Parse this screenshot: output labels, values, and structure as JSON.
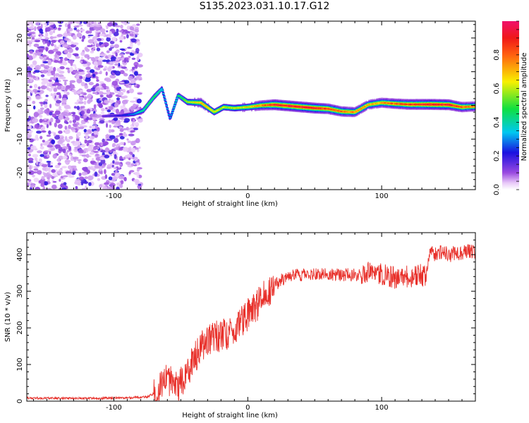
{
  "figure": {
    "title": "S135.2023.031.10.17.G12"
  },
  "chart_data": [
    {
      "type": "heatmap",
      "xlabel": "Height of straight line (km)",
      "ylabel": "Frequency (Hz)",
      "xlim": [
        -165,
        170
      ],
      "ylim": [
        -25,
        25
      ],
      "xticks": [
        -100,
        0,
        100
      ],
      "yticks": [
        -20,
        -10,
        0,
        10,
        20
      ],
      "grid": false,
      "colorbar": {
        "label": "Normalized spectral amplitude",
        "range": [
          0,
          1
        ],
        "ticks": [
          "0.0",
          "0.2",
          "0.4",
          "0.6",
          "0.8"
        ],
        "tick_values": [
          0.0,
          0.2,
          0.4,
          0.6,
          0.8
        ],
        "colormap": "rainbow (white-purple-blue-cyan-green-yellow-red-magenta)"
      },
      "noise_region_x": [
        -165,
        -80
      ],
      "ridge": [
        {
          "x": -108,
          "freq": -3.2,
          "amp": 0.15
        },
        {
          "x": -95,
          "freq": -3.0,
          "amp": 0.2
        },
        {
          "x": -85,
          "freq": -2.6,
          "amp": 0.3
        },
        {
          "x": -78,
          "freq": -1.5,
          "amp": 0.4
        },
        {
          "x": -70,
          "freq": 2.5,
          "amp": 0.45
        },
        {
          "x": -64,
          "freq": 5.0,
          "amp": 0.35
        },
        {
          "x": -58,
          "freq": -4.0,
          "amp": 0.3
        },
        {
          "x": -52,
          "freq": 3.0,
          "amp": 0.4
        },
        {
          "x": -45,
          "freq": 1.0,
          "amp": 0.55
        },
        {
          "x": -35,
          "freq": 0.8,
          "amp": 0.7
        },
        {
          "x": -25,
          "freq": -2.0,
          "amp": 0.6
        },
        {
          "x": -18,
          "freq": -0.5,
          "amp": 0.6
        },
        {
          "x": -10,
          "freq": -0.8,
          "amp": 0.6
        },
        {
          "x": 0,
          "freq": -0.5,
          "amp": 0.65
        },
        {
          "x": 10,
          "freq": 0.0,
          "amp": 0.75
        },
        {
          "x": 20,
          "freq": 0.2,
          "amp": 0.9
        },
        {
          "x": 35,
          "freq": -0.3,
          "amp": 0.9
        },
        {
          "x": 50,
          "freq": -0.8,
          "amp": 0.9
        },
        {
          "x": 60,
          "freq": -1.0,
          "amp": 0.85
        },
        {
          "x": 70,
          "freq": -1.8,
          "amp": 0.8
        },
        {
          "x": 80,
          "freq": -2.0,
          "amp": 0.75
        },
        {
          "x": 90,
          "freq": 0.2,
          "amp": 0.7
        },
        {
          "x": 100,
          "freq": 0.8,
          "amp": 0.75
        },
        {
          "x": 110,
          "freq": 0.5,
          "amp": 0.8
        },
        {
          "x": 120,
          "freq": 0.3,
          "amp": 0.85
        },
        {
          "x": 135,
          "freq": 0.3,
          "amp": 0.9
        },
        {
          "x": 150,
          "freq": 0.2,
          "amp": 0.9
        },
        {
          "x": 160,
          "freq": -0.5,
          "amp": 0.8
        },
        {
          "x": 170,
          "freq": -0.3,
          "amp": 0.75
        }
      ]
    },
    {
      "type": "line",
      "xlabel": "Height of straight line (km)",
      "ylabel": "SNR (10 * v/v)",
      "xlim": [
        -165,
        170
      ],
      "ylim": [
        0,
        460
      ],
      "xticks": [
        -100,
        0,
        100
      ],
      "yticks": [
        0,
        100,
        200,
        300,
        400
      ],
      "grid": false,
      "series": [
        {
          "color": "#e8302a",
          "points": [
            [
              -165,
              8
            ],
            [
              -150,
              8
            ],
            [
              -130,
              8
            ],
            [
              -110,
              8
            ],
            [
              -90,
              9
            ],
            [
              -75,
              12
            ],
            [
              -68,
              25
            ],
            [
              -62,
              65
            ],
            [
              -56,
              50
            ],
            [
              -52,
              35
            ],
            [
              -48,
              60
            ],
            [
              -44,
              90
            ],
            [
              -40,
              120
            ],
            [
              -35,
              145
            ],
            [
              -30,
              165
            ],
            [
              -25,
              175
            ],
            [
              -20,
              180
            ],
            [
              -15,
              185
            ],
            [
              -10,
              200
            ],
            [
              -5,
              220
            ],
            [
              0,
              235
            ],
            [
              5,
              255
            ],
            [
              10,
              275
            ],
            [
              15,
              300
            ],
            [
              20,
              315
            ],
            [
              25,
              330
            ],
            [
              30,
              340
            ],
            [
              40,
              345
            ],
            [
              50,
              345
            ],
            [
              60,
              345
            ],
            [
              70,
              345
            ],
            [
              80,
              345
            ],
            [
              90,
              350
            ],
            [
              100,
              345
            ],
            [
              110,
              338
            ],
            [
              120,
              340
            ],
            [
              130,
              343
            ],
            [
              134,
              345
            ],
            [
              135,
              400
            ],
            [
              145,
              405
            ],
            [
              155,
              400
            ],
            [
              165,
              408
            ],
            [
              170,
              410
            ]
          ]
        }
      ]
    }
  ]
}
